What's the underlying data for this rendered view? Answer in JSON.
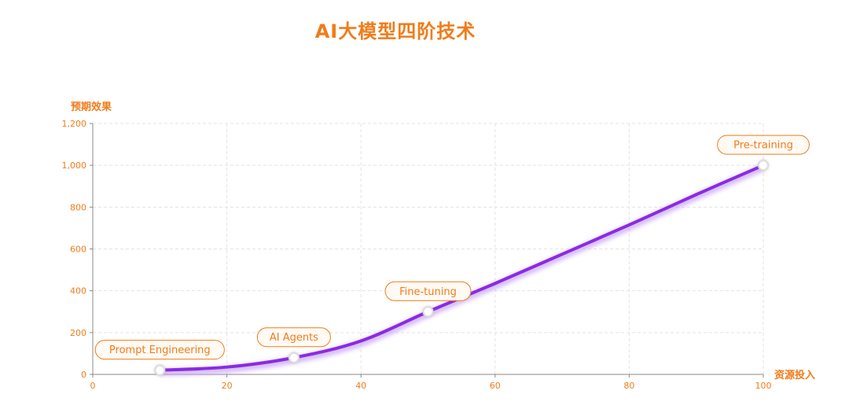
{
  "colors": {
    "accent": "#f07c1a",
    "line": "#8a2be2",
    "line_glow": "#c9a4f5",
    "grid": "#e3e3e3",
    "axis": "#888888",
    "label_bg": "#fffaf4",
    "marker_fill": "#ffffff",
    "marker_stroke": "#dddddd"
  },
  "chart_data": {
    "type": "line",
    "title": "AI大模型四阶技术",
    "xlabel": "资源投入",
    "ylabel": "预期效果",
    "xlim": [
      0,
      100
    ],
    "ylim": [
      0,
      1200
    ],
    "x_ticks": [
      0,
      20,
      40,
      60,
      80,
      100
    ],
    "y_ticks": [
      0,
      200,
      400,
      600,
      800,
      1000,
      1200
    ],
    "y_tick_labels": [
      "0",
      "200",
      "400",
      "600",
      "800",
      "1,000",
      "1,200"
    ],
    "grid": true,
    "smooth": true,
    "series": [
      {
        "points": [
          {
            "x": 10,
            "y": 20
          },
          {
            "x": 20,
            "y": 35
          },
          {
            "x": 30,
            "y": 80
          },
          {
            "x": 40,
            "y": 160
          },
          {
            "x": 50,
            "y": 300
          },
          {
            "x": 60,
            "y": 435
          },
          {
            "x": 70,
            "y": 575
          },
          {
            "x": 80,
            "y": 715
          },
          {
            "x": 90,
            "y": 860
          },
          {
            "x": 100,
            "y": 1000
          }
        ]
      }
    ],
    "annotations": [
      {
        "label": "Prompt Engineering",
        "x": 10,
        "y": 20
      },
      {
        "label": "AI Agents",
        "x": 30,
        "y": 80
      },
      {
        "label": "Fine-tuning",
        "x": 50,
        "y": 300
      },
      {
        "label": "Pre-training",
        "x": 100,
        "y": 1000
      }
    ]
  }
}
